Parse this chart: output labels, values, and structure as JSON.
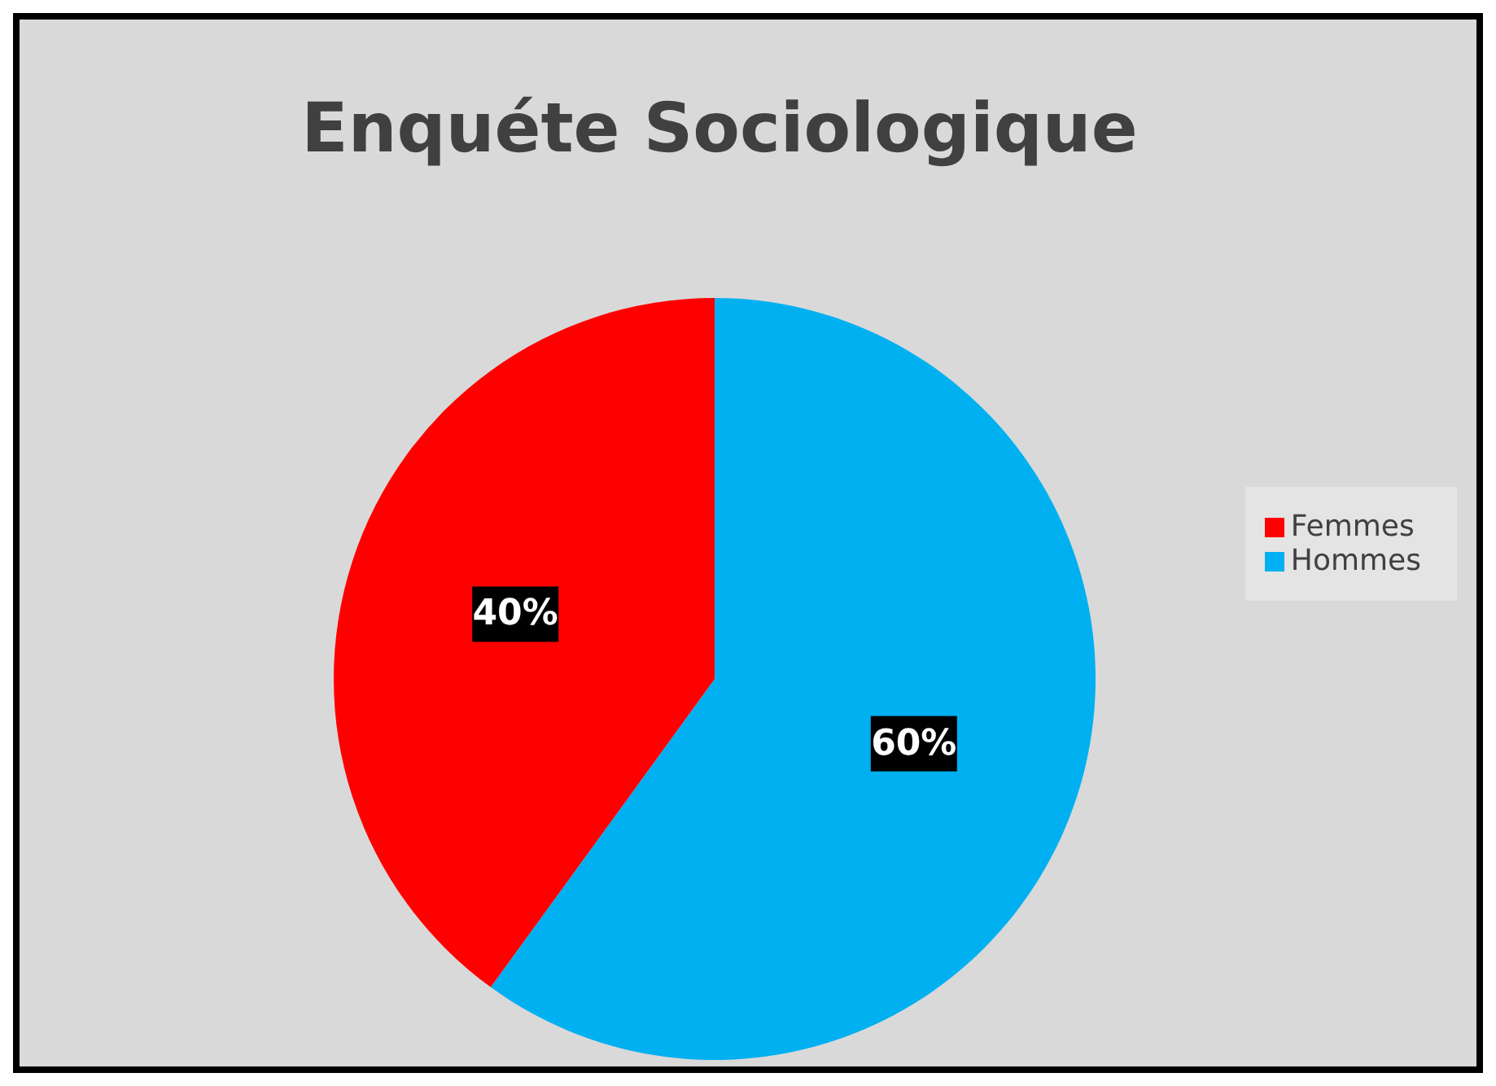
{
  "chart_data": {
    "type": "pie",
    "title": "Enquéte Sociologique",
    "categories": [
      "Hommes",
      "Femmes"
    ],
    "values": [
      60,
      40
    ],
    "value_labels": [
      "60%",
      "40%"
    ],
    "colors": [
      "#00b0f0",
      "#ff0000"
    ],
    "legend": "right"
  }
}
